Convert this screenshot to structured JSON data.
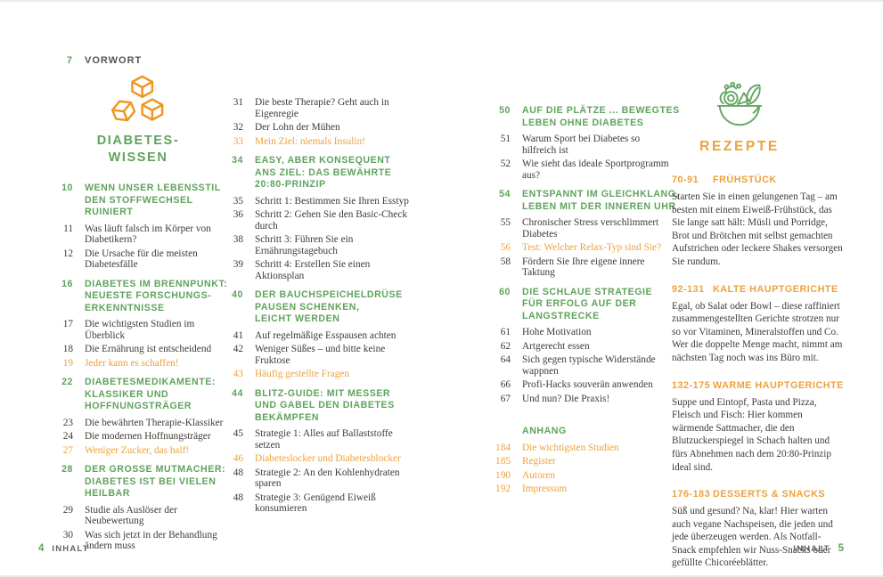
{
  "colors": {
    "green": "#5fa35c",
    "orange": "#eda23a",
    "icon_orange": "#f0951f",
    "icon_green": "#64a862",
    "text": "#3f3a35"
  },
  "vorwort": {
    "num": "7",
    "label": "VORWORT"
  },
  "left_page": {
    "icon": "sugar-cubes-icon",
    "title": "DIABETES-\nWISSEN"
  },
  "right_page": {
    "icon": "salad-bowl-icon",
    "title": "REZEPTE"
  },
  "footer_left": {
    "num": "4",
    "label": "INHALT"
  },
  "footer_right": {
    "num": "5",
    "label": "INHALT"
  },
  "toc": {
    "columns": [
      {
        "entries": [
          {
            "num": "10",
            "type": "heading",
            "text": "WENN UNSER LEBENSSTIL\nDEN STOFFWECHSEL\nRUINIERT"
          },
          {
            "num": "11",
            "type": "entry",
            "text": "Was läuft falsch im Körper von\nDiabetikern?"
          },
          {
            "num": "12",
            "type": "entry",
            "text": "Die Ursache für die meisten\nDiabetesfälle"
          },
          {
            "num": "16",
            "type": "heading",
            "text": "DIABETES IM BRENNPUNKT:\nNEUESTE FORSCHUNGS-\nERKENNTNISSE"
          },
          {
            "num": "17",
            "type": "entry",
            "text": "Die wichtigsten Studien im Überblick"
          },
          {
            "num": "18",
            "type": "entry",
            "text": "Die Ernährung ist entscheidend"
          },
          {
            "num": "19",
            "type": "highlight",
            "text": "Jeder kann es schaffen!"
          },
          {
            "num": "22",
            "type": "heading",
            "text": "DIABETESMEDIKAMENTE:\nKLASSIKER UND\nHOFFNUNGSTRÄGER"
          },
          {
            "num": "23",
            "type": "entry",
            "text": "Die bewährten Therapie-Klassiker"
          },
          {
            "num": "24",
            "type": "entry",
            "text": "Die modernen Hoffnungsträger"
          },
          {
            "num": "27",
            "type": "highlight",
            "text": "Weniger Zucker, das half!"
          },
          {
            "num": "28",
            "type": "heading",
            "text": "DER GROSSE MUTMACHER:\nDIABETES IST BEI VIELEN\nHEILBAR"
          },
          {
            "num": "29",
            "type": "entry",
            "text": "Studie als Auslöser der Neubewertung"
          },
          {
            "num": "30",
            "type": "entry",
            "text": "Was sich jetzt in der Behandlung\nändern muss"
          }
        ]
      },
      {
        "entries": [
          {
            "num": "31",
            "type": "entry",
            "text": "Die beste Therapie? Geht auch in\nEigenregie"
          },
          {
            "num": "32",
            "type": "entry",
            "text": "Der Lohn der Mühen"
          },
          {
            "num": "33",
            "type": "highlight",
            "text": "Mein Ziel: niemals Insulin!"
          },
          {
            "num": "34",
            "type": "heading",
            "text": "EASY, ABER KONSEQUENT\nANS ZIEL: DAS BEWÄHRTE\n20:80-PRINZIP"
          },
          {
            "num": "35",
            "type": "entry",
            "text": "Schritt 1: Bestimmen Sie Ihren Esstyp"
          },
          {
            "num": "36",
            "type": "entry",
            "text": "Schritt 2: Gehen Sie den Basic-Check\ndurch"
          },
          {
            "num": "38",
            "type": "entry",
            "text": "Schritt 3: Führen Sie ein\nErnährungstagebuch"
          },
          {
            "num": "39",
            "type": "entry",
            "text": "Schritt 4: Erstellen Sie einen\nAktionsplan"
          },
          {
            "num": "40",
            "type": "heading",
            "text": "DER BAUCHSPEICHELDRÜSE\nPAUSEN SCHENKEN,\nLEICHT WERDEN"
          },
          {
            "num": "41",
            "type": "entry",
            "text": "Auf regelmäßige Esspausen achten"
          },
          {
            "num": "42",
            "type": "entry",
            "text": "Weniger Süßes – und bitte keine\nFruktose"
          },
          {
            "num": "43",
            "type": "highlight",
            "text": "Häufig gestellte Fragen"
          },
          {
            "num": "44",
            "type": "heading",
            "text": "BLITZ-GUIDE: MIT MESSER\nUND GABEL DEN DIABETES\nBEKÄMPFEN"
          },
          {
            "num": "45",
            "type": "entry",
            "text": "Strategie 1: Alles auf Ballaststoffe\nsetzen"
          },
          {
            "num": "46",
            "type": "highlight",
            "text": "Diabeteslocker und Diabetesblocker"
          },
          {
            "num": "48",
            "type": "entry",
            "text": "Strategie 2: An den Kohlenhydraten\nsparen"
          },
          {
            "num": "48",
            "type": "entry",
            "text": "Strategie 3: Genügend Eiweiß\nkonsumieren"
          }
        ]
      },
      {
        "entries": [
          {
            "num": "50",
            "type": "heading",
            "text": "AUF DIE PLÄTZE ... BEWEGTES\nLEBEN OHNE DIABETES"
          },
          {
            "num": "51",
            "type": "entry",
            "text": "Warum Sport bei Diabetes so\nhilfreich ist"
          },
          {
            "num": "52",
            "type": "entry",
            "text": "Wie sieht das ideale Sportprogramm\naus?"
          },
          {
            "num": "54",
            "type": "heading",
            "text": "ENTSPANNT IM GLEICHKLANG,\nLEBEN MIT DER INNEREN UHR"
          },
          {
            "num": "55",
            "type": "entry",
            "text": "Chronischer Stress verschlimmert\nDiabetes"
          },
          {
            "num": "56",
            "type": "highlight",
            "text": "Test: Welcher Relax-Typ sind Sie?"
          },
          {
            "num": "58",
            "type": "entry",
            "text": "Fördern Sie Ihre eigene innere\nTaktung"
          },
          {
            "num": "60",
            "type": "heading",
            "text": "DIE SCHLAUE STRATEGIE\nFÜR ERFOLG AUF DER\nLANGSTRECKE"
          },
          {
            "num": "61",
            "type": "entry",
            "text": "Hohe Motivation"
          },
          {
            "num": "62",
            "type": "entry",
            "text": "Artgerecht essen"
          },
          {
            "num": "64",
            "type": "entry",
            "text": "Sich gegen typische Widerstände\nwappnen"
          },
          {
            "num": "66",
            "type": "entry",
            "text": "Profi-Hacks souverän anwenden"
          },
          {
            "num": "67",
            "type": "entry",
            "text": "Und nun? Die Praxis!"
          },
          {
            "num": "",
            "type": "heading",
            "gap_before": true,
            "text": "ANHANG"
          },
          {
            "num": "184",
            "type": "highlight",
            "text": "Die wichtigsten Studien"
          },
          {
            "num": "185",
            "type": "highlight",
            "text": "Register"
          },
          {
            "num": "190",
            "type": "highlight",
            "text": "Autoren"
          },
          {
            "num": "192",
            "type": "highlight",
            "text": "Impressum"
          }
        ]
      }
    ]
  },
  "rezepte": {
    "sections": [
      {
        "range": "70-91",
        "title": "FRÜHSTÜCK",
        "text": "Starten Sie in einen gelungenen Tag – am besten mit einem Eiweiß-Frühstück, das Sie lange satt hält: Müsli und Porridge, Brot und Brötchen mit selbst gemachten Aufstrichen oder leckere Shakes versorgen Sie rundum."
      },
      {
        "range": "92-131",
        "title": "KALTE HAUPTGERICHTE",
        "text": "Egal, ob Salat oder Bowl – diese raffiniert zusammengestellten Gerichte strotzen nur so vor Vitaminen, Mineralstoffen und Co. Wer die doppelte Menge macht, nimmt am nächsten Tag noch was ins Büro mit."
      },
      {
        "range": "132-175",
        "title": "WARME HAUPTGERICHTE",
        "text": "Suppe und Eintopf, Pasta und Pizza, Fleisch und Fisch: Hier kommen wärmende Sattmacher, die den Blutzuckerspiegel in Schach halten und fürs Abnehmen nach dem 20:80-Prinzip ideal sind."
      },
      {
        "range": "176-183",
        "title": "DESSERTS & SNACKS",
        "text": "Süß und gesund? Na, klar! Hier warten auch vegane Nachspeisen, die jeden und jede überzeugen werden. Als Notfall-Snack empfehlen wir Nuss-Snacks oder gefüllte Chicoréeblätter."
      }
    ]
  }
}
